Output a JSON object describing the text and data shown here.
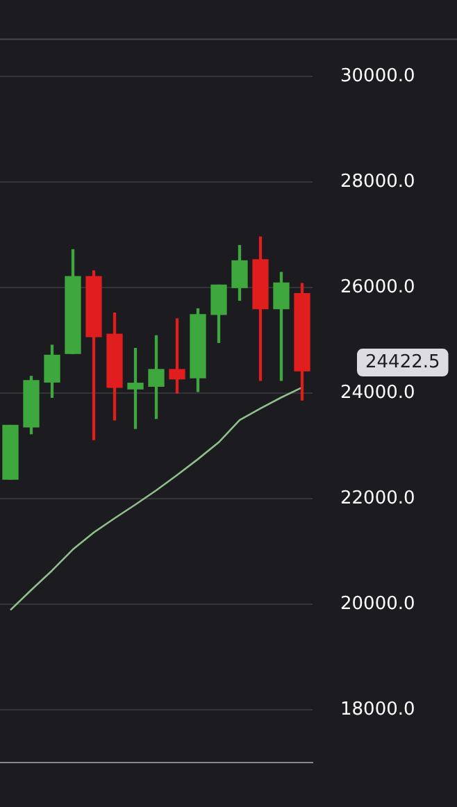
{
  "chart_data": {
    "type": "candlestick",
    "categories": [
      null,
      null,
      null,
      null,
      null,
      null,
      null,
      null,
      null,
      null,
      null,
      null,
      null,
      null,
      null
    ],
    "ohlc": [
      [
        22370,
        23390,
        22370,
        23390
      ],
      [
        23360,
        24320,
        23230,
        24240
      ],
      [
        24210,
        24910,
        23920,
        24720
      ],
      [
        24750,
        26720,
        24750,
        26210
      ],
      [
        26210,
        26320,
        23120,
        25070
      ],
      [
        25120,
        25520,
        23490,
        24110
      ],
      [
        24080,
        24850,
        23330,
        24190
      ],
      [
        24130,
        25090,
        23520,
        24450
      ],
      [
        24450,
        25410,
        24000,
        24270
      ],
      [
        24290,
        25600,
        24030,
        25490
      ],
      [
        25490,
        26050,
        24960,
        26050
      ],
      [
        26000,
        26800,
        25760,
        26510
      ],
      [
        26530,
        26960,
        24240,
        25600
      ],
      [
        25600,
        26290,
        24240,
        26090
      ],
      [
        25890,
        26080,
        23870,
        24422.5
      ]
    ],
    "colors": [
      "#3ea83e",
      "#3ea83e",
      "#3ea83e",
      "#3ea83e",
      "#e01e1e",
      "#e01e1e",
      "#3ea83e",
      "#3ea83e",
      "#e01e1e",
      "#3ea83e",
      "#3ea83e",
      "#3ea83e",
      "#e01e1e",
      "#3ea83e",
      "#e01e1e"
    ],
    "series": [
      {
        "type": "line",
        "color": "#8fbf8a",
        "values": [
          19890,
          20270,
          20640,
          21040,
          21360,
          21630,
          21890,
          22160,
          22450,
          22750,
          23070,
          23490,
          23710,
          23920,
          24110
        ]
      }
    ],
    "ylim": [
      17000,
      30720
    ],
    "yticks": [
      {
        "value": 18000,
        "label": "18000.0"
      },
      {
        "value": 20000,
        "label": "20000.0"
      },
      {
        "value": 22000,
        "label": "22000.0"
      },
      {
        "value": 24000,
        "label": "24000.0"
      },
      {
        "value": 26000,
        "label": "26000.0"
      },
      {
        "value": 28000,
        "label": "28000.0"
      },
      {
        "value": 30000,
        "label": "30000.0"
      }
    ],
    "tick_labels": "y",
    "grid": "y",
    "legend": false,
    "marker": "none",
    "annotations": [
      "24422.5"
    ]
  }
}
